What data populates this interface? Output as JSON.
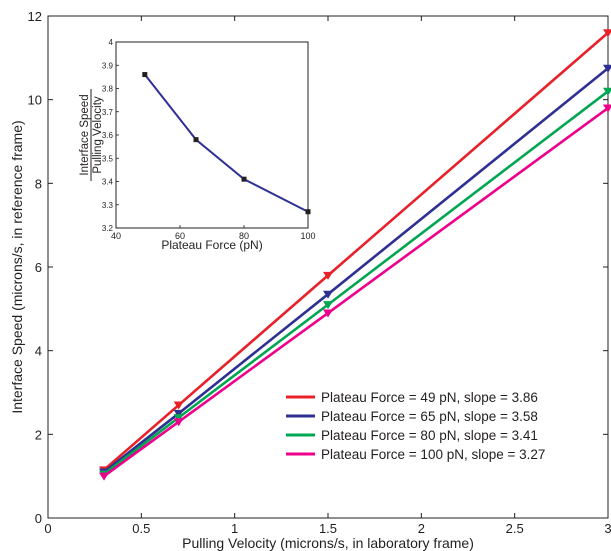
{
  "chart_data": [
    {
      "type": "line",
      "xlabel": "Pulling Velocity (microns/s, in laboratory frame)",
      "ylabel": "Interface Speed (microns/s, in reference frame)",
      "xlim": [
        0,
        3
      ],
      "ylim": [
        0,
        12
      ],
      "xticks": [
        0,
        0.5,
        1,
        1.5,
        2,
        2.5,
        3
      ],
      "xtick_labels": [
        "0",
        "0.5",
        "1",
        "1.5",
        "2",
        "2.5",
        "3"
      ],
      "yticks": [
        0,
        2,
        4,
        6,
        8,
        10,
        12
      ],
      "ytick_labels": [
        "0",
        "2",
        "4",
        "6",
        "8",
        "10",
        "12"
      ],
      "grid": false,
      "legend_position": "bottom-right",
      "series": [
        {
          "name": "Plateau Force = 49 pN, slope = 3.86",
          "color": "#e8202a",
          "x": [
            0.3,
            0.7,
            1.5,
            3
          ],
          "y": [
            1.15,
            2.7,
            5.8,
            11.6
          ]
        },
        {
          "name": "Plateau Force = 65 pN, slope = 3.58",
          "color": "#2e3192",
          "x": [
            0.3,
            0.7,
            1.5,
            3
          ],
          "y": [
            1.1,
            2.5,
            5.35,
            10.75
          ]
        },
        {
          "name": "Plateau Force = 80 pN, slope = 3.41",
          "color": "#00a651",
          "x": [
            0.3,
            0.7,
            1.5,
            3
          ],
          "y": [
            1.05,
            2.4,
            5.1,
            10.2
          ]
        },
        {
          "name": "Plateau Force = 100 pN, slope = 3.27",
          "color": "#ec008c",
          "x": [
            0.3,
            0.7,
            1.5,
            3
          ],
          "y": [
            1.0,
            2.3,
            4.9,
            9.8
          ]
        }
      ]
    },
    {
      "type": "line",
      "xlabel": "Plateau Force (pN)",
      "ylabel_top": "Interface Speed",
      "ylabel_bottom": "Pulling Velocity",
      "xlim": [
        40,
        100
      ],
      "ylim": [
        3.2,
        4.0
      ],
      "xticks": [
        40,
        60,
        80,
        100
      ],
      "xtick_labels": [
        "40",
        "60",
        "80",
        "100"
      ],
      "yticks": [
        3.2,
        3.3,
        3.4,
        3.5,
        3.6,
        3.7,
        3.8,
        3.9,
        4.0
      ],
      "ytick_labels": [
        "3.2",
        "3.3",
        "3.4",
        "3.5",
        "3.6",
        "3.7",
        "3.8",
        "3.9",
        "4"
      ],
      "series": [
        {
          "color": "#2e3192",
          "x": [
            49,
            65,
            80,
            100
          ],
          "y": [
            3.86,
            3.58,
            3.41,
            3.27
          ]
        }
      ]
    }
  ]
}
